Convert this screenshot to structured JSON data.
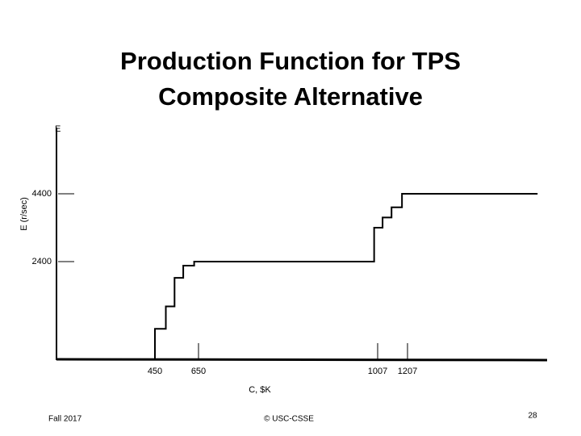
{
  "chart_data": {
    "type": "line",
    "title": [
      "Production Function for TPS",
      "Composite Alternative"
    ],
    "y_axis_top_label": "E",
    "ylabel": "E (r/sec)",
    "xlabel": "C, $K",
    "x": [
      450,
      450,
      500,
      500,
      540,
      540,
      580,
      580,
      630,
      630,
      1000,
      1000,
      1040,
      1040,
      1100,
      1100,
      1170,
      1170,
      1480
    ],
    "series": [
      {
        "color": "#000000",
        "values": [
          0,
          750,
          750,
          1300,
          1300,
          2000,
          2000,
          2300,
          2300,
          2400,
          2400,
          3400,
          3400,
          3700,
          3700,
          4000,
          4000,
          4400,
          4400
        ]
      }
    ],
    "xlim": [
      0,
      1500
    ],
    "xticks": [
      450,
      650,
      1007,
      1207
    ],
    "ylim": [
      0,
      6400
    ],
    "yticks": [
      2400,
      4400
    ]
  },
  "footer": {
    "left": "Fall 2017",
    "center": "© USC-CSSE",
    "page": "28"
  }
}
